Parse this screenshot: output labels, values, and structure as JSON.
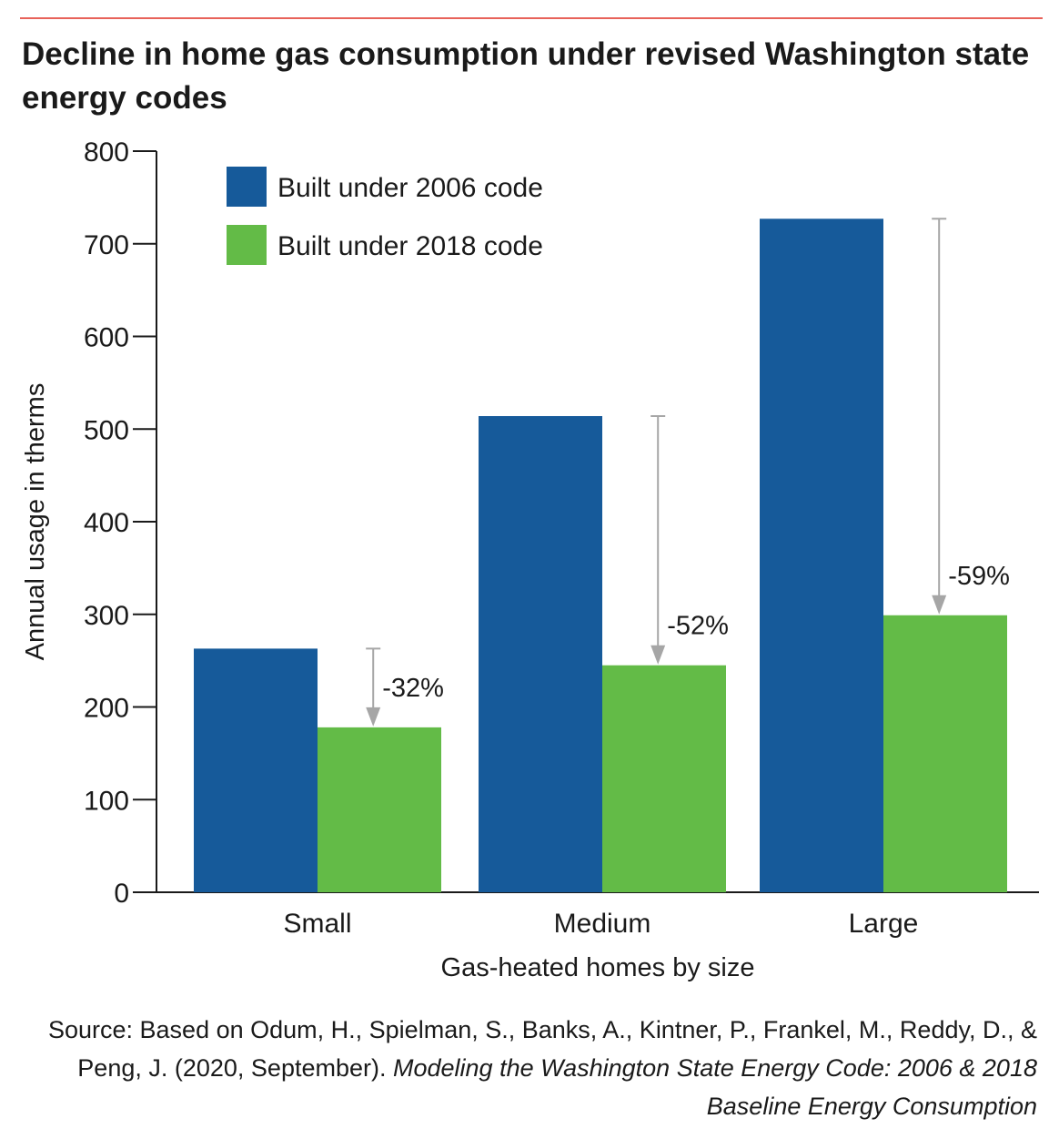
{
  "title": "Decline in home gas consumption under revised Washington state energy codes",
  "source": {
    "prefix": "Source: Based on Odum, H., Spielman, S., Banks, A., Kintner, P., Frankel, M., Reddy, D., & Peng, J. (2020, September).",
    "citation": "Modeling the Washington State Energy Code: 2006 & 2018 Baseline Energy Consumption"
  },
  "colors": {
    "series_2006": "#165a9a",
    "series_2018": "#63bb47",
    "arrow": "#a6a6a6",
    "axis": "#1a1a1a",
    "rule": "#e8625a"
  },
  "chart_data": {
    "type": "bar",
    "title": "Decline in home gas consumption under revised Washington state energy codes",
    "xlabel": "Gas-heated homes by size",
    "ylabel": "Annual usage in therms",
    "categories": [
      "Small",
      "Medium",
      "Large"
    ],
    "series": [
      {
        "name": "Built under 2006 code",
        "values": [
          263,
          514,
          727
        ]
      },
      {
        "name": "Built under 2018 code",
        "values": [
          178,
          245,
          299
        ]
      }
    ],
    "annotations": [
      "-32%",
      "-52%",
      "-59%"
    ],
    "ylim": [
      0,
      800
    ],
    "yticks": [
      0,
      100,
      200,
      300,
      400,
      500,
      600,
      700,
      800
    ],
    "grid": false,
    "legend": "top-left"
  }
}
